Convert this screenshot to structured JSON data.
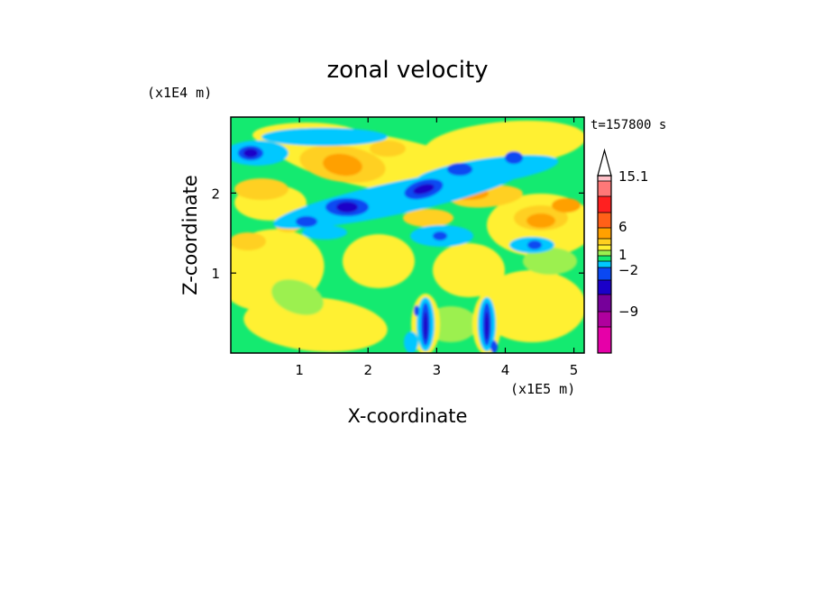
{
  "chart_data": {
    "type": "heatmap",
    "title": "zonal velocity",
    "xlabel": "X-coordinate",
    "ylabel": "Z-coordinate",
    "x_unit": "(x1E5 m)",
    "y_unit": "(x1E4 m)",
    "time_label": "t=157800 s",
    "xlim": [
      0,
      5.15
    ],
    "ylim": [
      0,
      2.95
    ],
    "x_ticks": [
      1,
      2,
      3,
      4,
      5
    ],
    "y_ticks": [
      1,
      2
    ],
    "colorbar": {
      "levels": [
        -15,
        -12,
        -9,
        -6,
        -3,
        -2,
        -1,
        0,
        1,
        2,
        3,
        6,
        9,
        12,
        15.1
      ],
      "labeled_levels": [
        15.1,
        6,
        1,
        -2,
        -9
      ],
      "colors": [
        "#e600a8",
        "#b0009e",
        "#76009a",
        "#1a00c8",
        "#0a48f2",
        "#00c8ff",
        "#14ea70",
        "#9cf050",
        "#fff030",
        "#ffd020",
        "#ffa000",
        "#ff6018",
        "#ff2020",
        "#ff7878",
        "#ffc0c8"
      ],
      "extend_top": true
    },
    "notes": "Contour-filled field of zonal velocity; blue bands near z~2.5, 1.9 and 2.1; jets near x~2.8 and x~3.7 near the bottom."
  }
}
